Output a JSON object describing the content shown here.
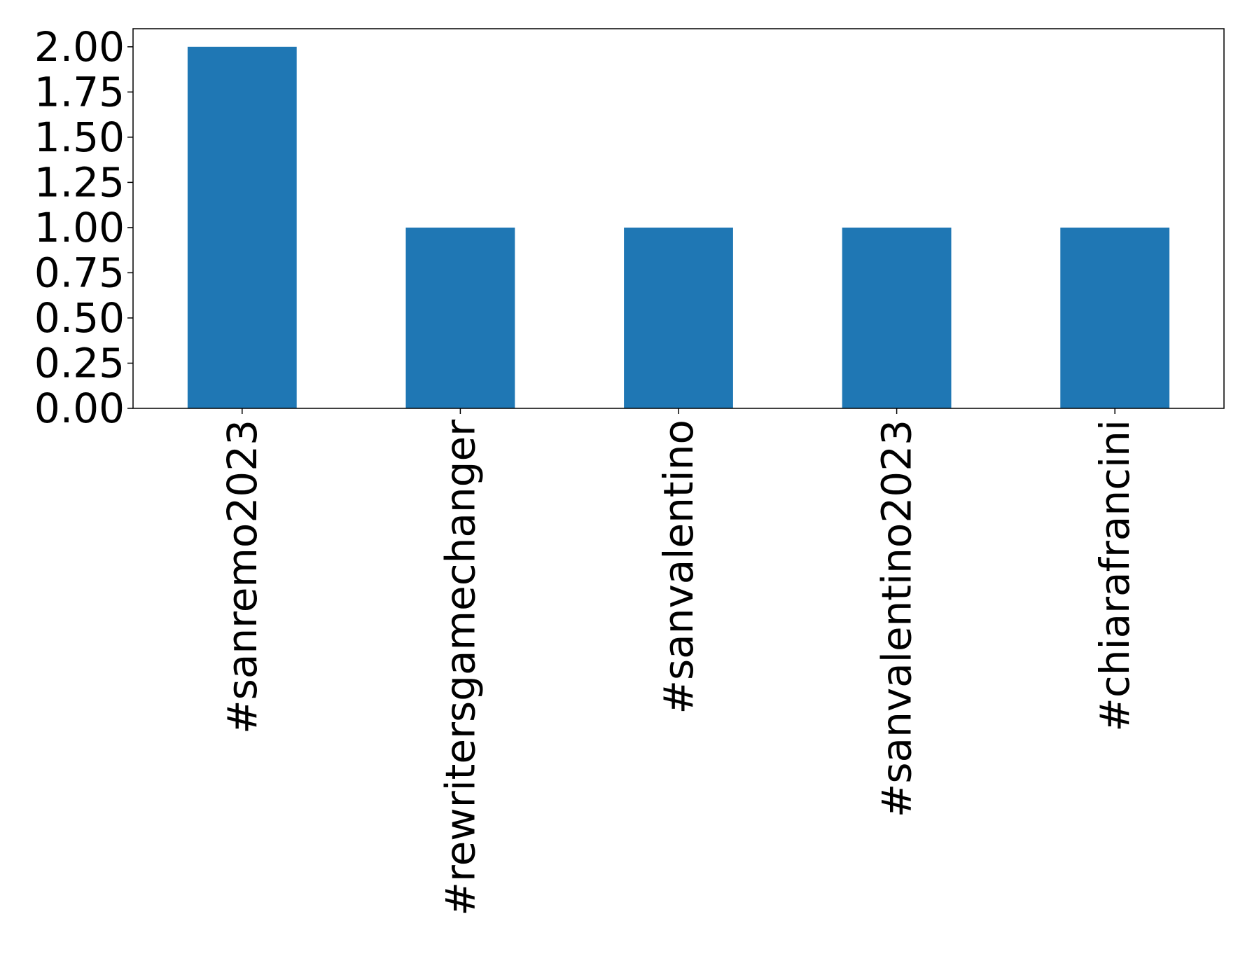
{
  "chart_data": {
    "type": "bar",
    "categories": [
      "#sanremo2023",
      "#rewritersgamechanger",
      "#sanvalentino",
      "#sanvalentino2023",
      "#chiarafrancini"
    ],
    "values": [
      2,
      1,
      1,
      1,
      1
    ],
    "title": "",
    "xlabel": "",
    "ylabel": "",
    "ylim": [
      0,
      2.1
    ],
    "yticks": [
      "0.00",
      "0.25",
      "0.50",
      "0.75",
      "1.00",
      "1.25",
      "1.50",
      "1.75",
      "2.00"
    ],
    "grid": false,
    "bar_color": "#1f77b4"
  }
}
